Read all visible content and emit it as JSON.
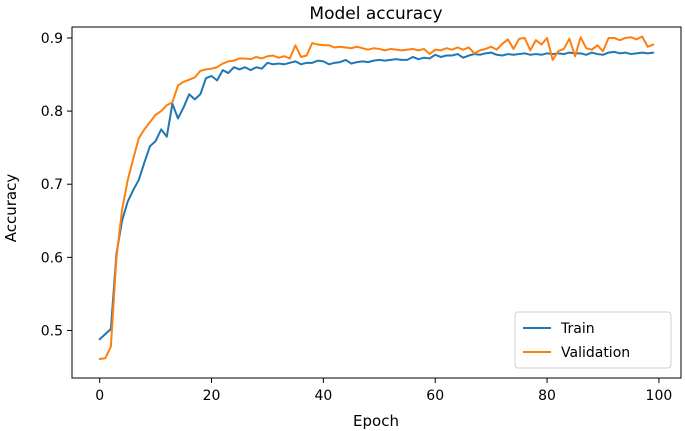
{
  "chart_data": {
    "type": "line",
    "title": "Model accuracy",
    "xlabel": "Epoch",
    "ylabel": "Accuracy",
    "xlim": [
      -4.95,
      103.95
    ],
    "ylim": [
      0.435,
      0.915
    ],
    "xticks": [
      0,
      20,
      40,
      60,
      80,
      100
    ],
    "xtick_labels": [
      "0",
      "20",
      "40",
      "60",
      "80",
      "100"
    ],
    "yticks": [
      0.5,
      0.6,
      0.7,
      0.8,
      0.9
    ],
    "ytick_labels": [
      "0.5",
      "0.6",
      "0.7",
      "0.8",
      "0.9"
    ],
    "grid": false,
    "legend_position": "lower-right",
    "series": [
      {
        "name": "Train",
        "color": "#1f77b4",
        "x": [
          0,
          1,
          2,
          3,
          4,
          5,
          6,
          7,
          8,
          9,
          10,
          11,
          12,
          13,
          14,
          15,
          16,
          17,
          18,
          19,
          20,
          21,
          22,
          23,
          24,
          25,
          26,
          27,
          28,
          29,
          30,
          31,
          32,
          33,
          34,
          35,
          36,
          37,
          38,
          39,
          40,
          41,
          42,
          43,
          44,
          45,
          46,
          47,
          48,
          49,
          50,
          51,
          52,
          53,
          54,
          55,
          56,
          57,
          58,
          59,
          60,
          61,
          62,
          63,
          64,
          65,
          66,
          67,
          68,
          69,
          70,
          71,
          72,
          73,
          74,
          75,
          76,
          77,
          78,
          79,
          80,
          81,
          82,
          83,
          84,
          85,
          86,
          87,
          88,
          89,
          90,
          91,
          92,
          93,
          94,
          95,
          96,
          97,
          98,
          99
        ],
        "values": [
          0.488,
          0.495,
          0.502,
          0.605,
          0.65,
          0.676,
          0.692,
          0.706,
          0.73,
          0.752,
          0.759,
          0.775,
          0.765,
          0.81,
          0.79,
          0.805,
          0.823,
          0.816,
          0.823,
          0.845,
          0.848,
          0.842,
          0.856,
          0.852,
          0.86,
          0.857,
          0.86,
          0.856,
          0.86,
          0.858,
          0.866,
          0.864,
          0.865,
          0.864,
          0.866,
          0.868,
          0.864,
          0.866,
          0.866,
          0.869,
          0.868,
          0.864,
          0.866,
          0.867,
          0.87,
          0.865,
          0.867,
          0.868,
          0.867,
          0.869,
          0.87,
          0.869,
          0.87,
          0.871,
          0.87,
          0.87,
          0.874,
          0.871,
          0.873,
          0.872,
          0.877,
          0.874,
          0.876,
          0.876,
          0.878,
          0.873,
          0.876,
          0.878,
          0.877,
          0.879,
          0.88,
          0.877,
          0.876,
          0.878,
          0.877,
          0.878,
          0.879,
          0.877,
          0.878,
          0.877,
          0.879,
          0.878,
          0.879,
          0.878,
          0.88,
          0.879,
          0.879,
          0.877,
          0.88,
          0.878,
          0.877,
          0.88,
          0.881,
          0.879,
          0.88,
          0.878,
          0.879,
          0.88,
          0.879,
          0.88
        ]
      },
      {
        "name": "Validation",
        "color": "#ff7f0e",
        "x": [
          0,
          1,
          2,
          3,
          4,
          5,
          6,
          7,
          8,
          9,
          10,
          11,
          12,
          13,
          14,
          15,
          16,
          17,
          18,
          19,
          20,
          21,
          22,
          23,
          24,
          25,
          26,
          27,
          28,
          29,
          30,
          31,
          32,
          33,
          34,
          35,
          36,
          37,
          38,
          39,
          40,
          41,
          42,
          43,
          44,
          45,
          46,
          47,
          48,
          49,
          50,
          51,
          52,
          53,
          54,
          55,
          56,
          57,
          58,
          59,
          60,
          61,
          62,
          63,
          64,
          65,
          66,
          67,
          68,
          69,
          70,
          71,
          72,
          73,
          74,
          75,
          76,
          77,
          78,
          79,
          80,
          81,
          82,
          83,
          84,
          85,
          86,
          87,
          88,
          89,
          90,
          91,
          92,
          93,
          94,
          95,
          96,
          97,
          98,
          99
        ],
        "values": [
          0.461,
          0.462,
          0.478,
          0.6,
          0.665,
          0.705,
          0.735,
          0.763,
          0.775,
          0.785,
          0.795,
          0.8,
          0.808,
          0.812,
          0.835,
          0.84,
          0.843,
          0.846,
          0.855,
          0.857,
          0.858,
          0.86,
          0.865,
          0.868,
          0.869,
          0.872,
          0.872,
          0.871,
          0.874,
          0.872,
          0.875,
          0.876,
          0.873,
          0.875,
          0.872,
          0.89,
          0.874,
          0.876,
          0.893,
          0.891,
          0.89,
          0.89,
          0.887,
          0.888,
          0.887,
          0.886,
          0.888,
          0.886,
          0.884,
          0.886,
          0.885,
          0.883,
          0.885,
          0.884,
          0.883,
          0.884,
          0.885,
          0.883,
          0.885,
          0.878,
          0.884,
          0.883,
          0.886,
          0.884,
          0.887,
          0.884,
          0.887,
          0.879,
          0.883,
          0.885,
          0.888,
          0.884,
          0.892,
          0.898,
          0.885,
          0.899,
          0.9,
          0.883,
          0.897,
          0.891,
          0.9,
          0.87,
          0.882,
          0.885,
          0.899,
          0.875,
          0.901,
          0.886,
          0.884,
          0.89,
          0.882,
          0.9,
          0.9,
          0.897,
          0.9,
          0.901,
          0.898,
          0.902,
          0.888,
          0.891
        ]
      }
    ]
  }
}
